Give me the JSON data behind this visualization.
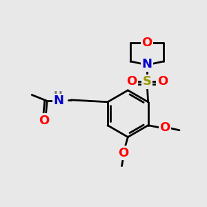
{
  "bg_color": "#e8e8e8",
  "bond_color": "#000000",
  "bond_width": 2.0,
  "atom_colors": {
    "O": "#ff0000",
    "N": "#0000cc",
    "S": "#999900",
    "H": "#777777",
    "C": "#000000"
  },
  "font_size": 12,
  "fig_size": [
    3.0,
    3.0
  ],
  "dpi": 100,
  "xlim": [
    0,
    10
  ],
  "ylim": [
    0,
    10
  ]
}
